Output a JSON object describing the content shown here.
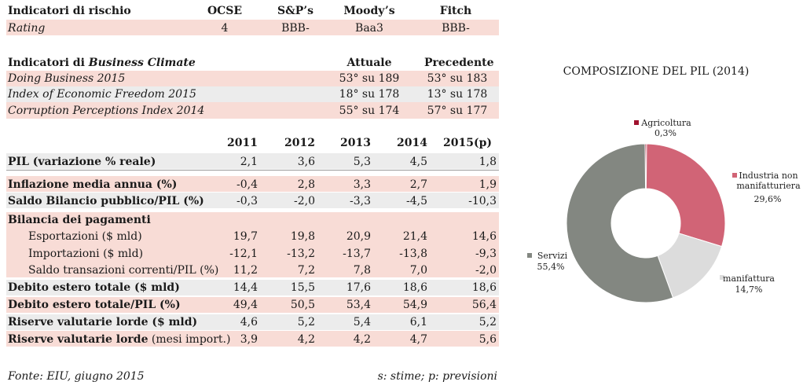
{
  "risk": {
    "title": "Indicatori di rischio",
    "cols": [
      "OCSE",
      "S&P’s",
      "Moody’s",
      "Fitch"
    ],
    "row_label": "Rating",
    "values": [
      "4",
      "BBB-",
      "Baa3",
      "BBB-"
    ]
  },
  "climate": {
    "title_prefix": "Indicatori di ",
    "title_italic": "Business Climate",
    "col_current": "Attuale",
    "col_previous": "Precedente",
    "rows": [
      {
        "label": "Doing Business 2015",
        "current": "53° su 189",
        "previous": "53° su 183"
      },
      {
        "label": "Index of Economic Freedom 2015",
        "current": "18° su 178",
        "previous": "13° su 178"
      },
      {
        "label": "Corruption Perceptions Index 2014",
        "current": "55° su 174",
        "previous": "57° su 177"
      }
    ]
  },
  "macro": {
    "years": [
      "2011",
      "2012",
      "2013",
      "2014",
      "2015(p)"
    ],
    "rows": [
      {
        "label": "PIL (variazione % reale)",
        "values": [
          "2,1",
          "3,6",
          "5,3",
          "4,5",
          "1,8"
        ]
      },
      {
        "label": "Inflazione media annua (%)",
        "values": [
          "-0,4",
          "2,8",
          "3,3",
          "2,7",
          "1,9"
        ]
      },
      {
        "label": "Saldo Bilancio pubblico/PIL (%)",
        "values": [
          "-0,3",
          "-2,0",
          "-3,3",
          "-4,5",
          "-10,3"
        ]
      },
      {
        "label": "Bilancia dei pagamenti",
        "values": [
          "",
          "",
          "",
          "",
          ""
        ]
      },
      {
        "label": "Esportazioni ($ mld)",
        "values": [
          "19,7",
          "19,8",
          "20,9",
          "21,4",
          "14,6"
        ]
      },
      {
        "label": "Importazioni ($ mld)",
        "values": [
          "-12,1",
          "-13,2",
          "-13,7",
          "-13,8",
          "-9,3"
        ]
      },
      {
        "label": "Saldo transazioni correnti/PIL (%)",
        "values": [
          "11,2",
          "7,2",
          "7,8",
          "7,0",
          "-2,0"
        ]
      },
      {
        "label": "Debito estero totale ($ mld)",
        "values": [
          "14,4",
          "15,5",
          "17,6",
          "18,6",
          "18,6"
        ]
      },
      {
        "label": "Debito estero totale/PIL (%)",
        "values": [
          "49,4",
          "50,5",
          "53,4",
          "54,9",
          "56,4"
        ]
      },
      {
        "label": "Riserve valutarie lorde ($ mld)",
        "values": [
          "4,6",
          "5,2",
          "5,4",
          "6,1",
          "5,2"
        ]
      },
      {
        "label": "Riserve valutarie lorde",
        "label_suffix": " (mesi import.)",
        "values": [
          "3,9",
          "4,2",
          "4,2",
          "4,7",
          "5,6"
        ]
      }
    ]
  },
  "footer": {
    "source": "Fonte: EIU, giugno 2015",
    "note": "s: stime; p: previsioni"
  },
  "chart_data": {
    "type": "pie",
    "title": "COMPOSIZIONE DEL PIL (2014)",
    "slices": [
      {
        "label": "Agricoltura",
        "value": 0.3,
        "value_label": "0,3%",
        "color": "#a0122e"
      },
      {
        "label": "Industria non manifatturiera",
        "label_lines": [
          "Industria non",
          "manifatturiera"
        ],
        "value": 29.6,
        "value_label": "29,6%",
        "color": "#d16476"
      },
      {
        "label": "manifattura",
        "value": 14.7,
        "value_label": "14,7%",
        "color": "#dcdcdc"
      },
      {
        "label": "Servizi",
        "value": 55.4,
        "value_label": "55,4%",
        "color": "#838781"
      }
    ],
    "donut": true
  }
}
